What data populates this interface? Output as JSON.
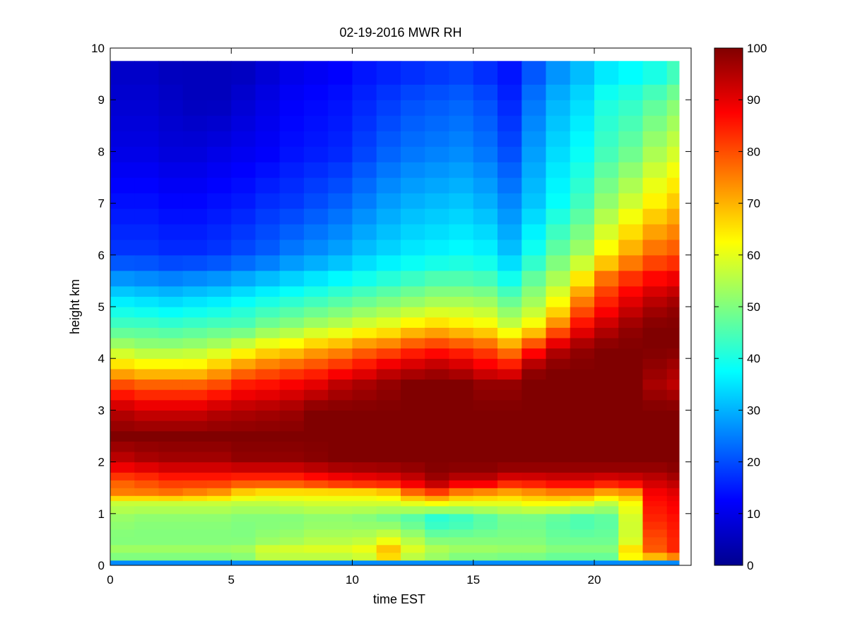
{
  "chart_data": {
    "type": "heatmap",
    "title": "02-19-2016 MWR RH",
    "xlabel": "time EST",
    "ylabel": "height km",
    "xlim": [
      0,
      24
    ],
    "ylim": [
      0,
      10
    ],
    "x_ticks": [
      0,
      5,
      10,
      15,
      20
    ],
    "y_ticks": [
      0,
      1,
      2,
      3,
      4,
      5,
      6,
      7,
      8,
      9,
      10
    ],
    "x_tick_labels": [
      "0",
      "5",
      "10",
      "15",
      "20"
    ],
    "y_tick_labels": [
      "0",
      "1",
      "2",
      "3",
      "4",
      "5",
      "6",
      "7",
      "8",
      "9",
      "10"
    ],
    "colorbar": {
      "colormap": "jet",
      "range": [
        0,
        100
      ],
      "ticks": [
        0,
        10,
        20,
        30,
        40,
        50,
        60,
        70,
        80,
        90,
        100
      ],
      "tick_labels": [
        "0",
        "10",
        "20",
        "30",
        "40",
        "50",
        "60",
        "70",
        "80",
        "90",
        "100"
      ]
    },
    "x": [
      0,
      1,
      2,
      3,
      4,
      5,
      6,
      7,
      8,
      9,
      10,
      11,
      12,
      13,
      14,
      15,
      16,
      17,
      18,
      19,
      20,
      21,
      22,
      23
    ],
    "y_edges_km": [
      0,
      0.1,
      0.25,
      0.4,
      0.55,
      0.7,
      0.85,
      1.0,
      1.15,
      1.25,
      1.35,
      1.5,
      1.65,
      1.8,
      2.0,
      2.2,
      2.4,
      2.6,
      2.8,
      3.0,
      3.2,
      3.4,
      3.6,
      3.8,
      4.0,
      4.2,
      4.4,
      4.6,
      4.8,
      5.0,
      5.2,
      5.4,
      5.7,
      6.0,
      6.3,
      6.6,
      6.9,
      7.2,
      7.5,
      7.8,
      8.1,
      8.4,
      8.7,
      9.0,
      9.3,
      9.75
    ],
    "anchor_heights_km": [
      0.05,
      0.2,
      0.5,
      0.9,
      1.2,
      1.4,
      1.6,
      1.8,
      2.0,
      2.5,
      3.0,
      3.5,
      3.8,
      4.2,
      4.6,
      5.0,
      5.5,
      6.0,
      7.0,
      8.0,
      9.0,
      9.7
    ],
    "anchor_values": [
      [
        26,
        55,
        50,
        52,
        57,
        75,
        78,
        85,
        93,
        100,
        94,
        80,
        68,
        55,
        45,
        38,
        28,
        18,
        14,
        10,
        8,
        7
      ],
      [
        26,
        55,
        50,
        51,
        57,
        75,
        80,
        86,
        95,
        100,
        92,
        78,
        66,
        53,
        45,
        37,
        27,
        18,
        14,
        10,
        8,
        7
      ],
      [
        26,
        55,
        50,
        51,
        57,
        76,
        82,
        88,
        96,
        100,
        92,
        78,
        66,
        53,
        44,
        36,
        26,
        17,
        13,
        9,
        7,
        6
      ],
      [
        26,
        55,
        50,
        51,
        57,
        74,
        82,
        88,
        96,
        100,
        92,
        78,
        66,
        54,
        45,
        37,
        27,
        17,
        13,
        9,
        6,
        6
      ],
      [
        26,
        55,
        50,
        51,
        57,
        72,
        82,
        88,
        96,
        100,
        94,
        80,
        70,
        56,
        46,
        38,
        28,
        18,
        14,
        10,
        6,
        6
      ],
      [
        26,
        56,
        50,
        50,
        56,
        66,
        80,
        88,
        98,
        100,
        95,
        85,
        75,
        60,
        46,
        40,
        30,
        20,
        15,
        11,
        8,
        6
      ],
      [
        26,
        62,
        52,
        50,
        56,
        64,
        80,
        88,
        98,
        100,
        96,
        86,
        78,
        64,
        50,
        42,
        32,
        22,
        17,
        12,
        10,
        8
      ],
      [
        26,
        62,
        53,
        50,
        57,
        64,
        80,
        88,
        98,
        100,
        97,
        88,
        80,
        66,
        52,
        44,
        34,
        25,
        18,
        14,
        12,
        10
      ],
      [
        26,
        62,
        55,
        51,
        58,
        64,
        82,
        90,
        99,
        100,
        100,
        90,
        82,
        70,
        55,
        46,
        36,
        27,
        20,
        15,
        13,
        11
      ],
      [
        26,
        62,
        55,
        51,
        58,
        64,
        84,
        92,
        100,
        100,
        100,
        94,
        85,
        72,
        57,
        48,
        38,
        29,
        22,
        16,
        14,
        12
      ],
      [
        26,
        64,
        56,
        50,
        58,
        64,
        85,
        93,
        100,
        100,
        100,
        96,
        88,
        76,
        60,
        50,
        40,
        32,
        25,
        19,
        16,
        14
      ],
      [
        26,
        74,
        60,
        48,
        58,
        66,
        86,
        94,
        100,
        100,
        100,
        98,
        92,
        78,
        62,
        52,
        42,
        34,
        28,
        22,
        18,
        15
      ],
      [
        26,
        62,
        55,
        45,
        60,
        76,
        90,
        96,
        100,
        100,
        100,
        100,
        94,
        82,
        66,
        54,
        44,
        36,
        30,
        24,
        20,
        16
      ],
      [
        26,
        58,
        50,
        40,
        62,
        80,
        95,
        99,
        100,
        100,
        100,
        100,
        96,
        84,
        68,
        56,
        46,
        37,
        31,
        25,
        21,
        17
      ],
      [
        26,
        55,
        50,
        42,
        60,
        74,
        90,
        98,
        100,
        100,
        100,
        100,
        94,
        82,
        66,
        56,
        46,
        38,
        32,
        26,
        22,
        18
      ],
      [
        26,
        55,
        50,
        45,
        60,
        72,
        90,
        98,
        100,
        100,
        100,
        98,
        90,
        80,
        64,
        55,
        45,
        37,
        30,
        24,
        20,
        16
      ],
      [
        26,
        54,
        50,
        48,
        60,
        70,
        85,
        96,
        100,
        100,
        100,
        98,
        88,
        74,
        58,
        50,
        40,
        32,
        26,
        20,
        16,
        14
      ],
      [
        26,
        54,
        50,
        48,
        62,
        72,
        86,
        96,
        100,
        100,
        100,
        100,
        98,
        84,
        64,
        55,
        48,
        40,
        32,
        28,
        24,
        20
      ],
      [
        26,
        52,
        48,
        46,
        62,
        74,
        88,
        96,
        100,
        100,
        100,
        100,
        100,
        94,
        76,
        64,
        55,
        48,
        38,
        34,
        30,
        26
      ],
      [
        26,
        52,
        48,
        44,
        60,
        74,
        88,
        96,
        100,
        100,
        100,
        100,
        100,
        98,
        88,
        78,
        66,
        54,
        44,
        38,
        34,
        30
      ],
      [
        26,
        52,
        48,
        46,
        56,
        70,
        86,
        96,
        100,
        100,
        100,
        100,
        100,
        100,
        94,
        86,
        78,
        64,
        52,
        44,
        40,
        34
      ],
      [
        26,
        70,
        58,
        58,
        62,
        72,
        88,
        96,
        100,
        100,
        100,
        100,
        100,
        100,
        98,
        92,
        84,
        72,
        58,
        48,
        42,
        36
      ],
      [
        26,
        78,
        80,
        84,
        86,
        88,
        92,
        96,
        100,
        100,
        100,
        96,
        98,
        100,
        100,
        96,
        88,
        78,
        64,
        54,
        46,
        38
      ],
      [
        26,
        84,
        84,
        86,
        88,
        90,
        94,
        98,
        100,
        100,
        100,
        94,
        96,
        100,
        100,
        98,
        90,
        80,
        68,
        58,
        50,
        42
      ]
    ]
  }
}
